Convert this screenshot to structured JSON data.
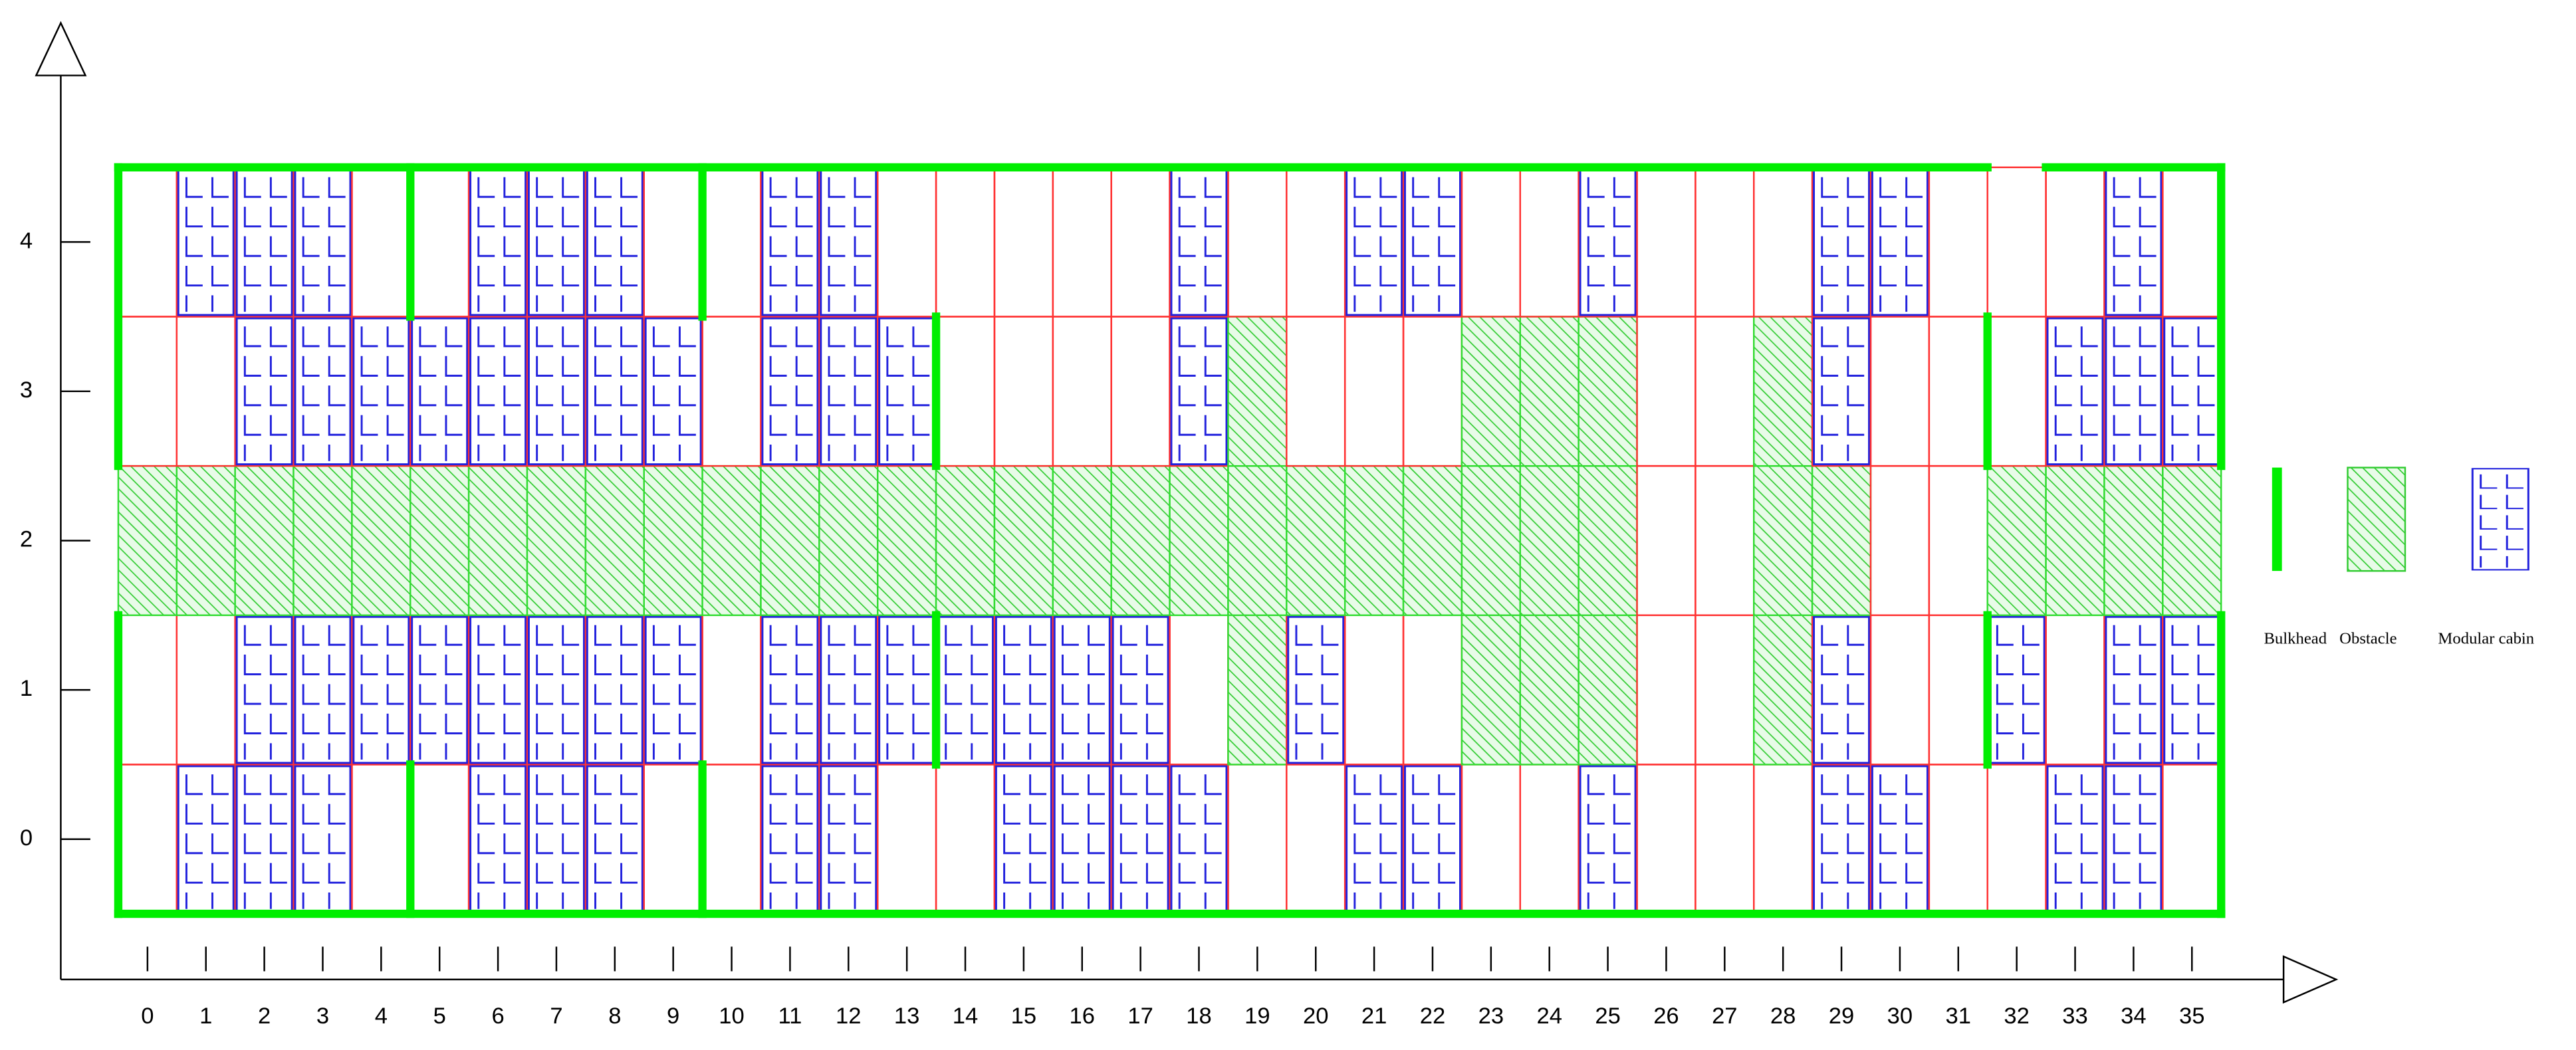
{
  "axes": {
    "x_labels": [
      0,
      1,
      2,
      3,
      4,
      5,
      6,
      7,
      8,
      9,
      10,
      11,
      12,
      13,
      14,
      15,
      16,
      17,
      18,
      19,
      20,
      21,
      22,
      23,
      24,
      25,
      26,
      27,
      28,
      29,
      30,
      31,
      32,
      33,
      34,
      35
    ],
    "y_labels": [
      0,
      1,
      2,
      3,
      4
    ]
  },
  "legend": [
    "Bulkhead",
    "Obstacle",
    "Modular cabin"
  ]
}
